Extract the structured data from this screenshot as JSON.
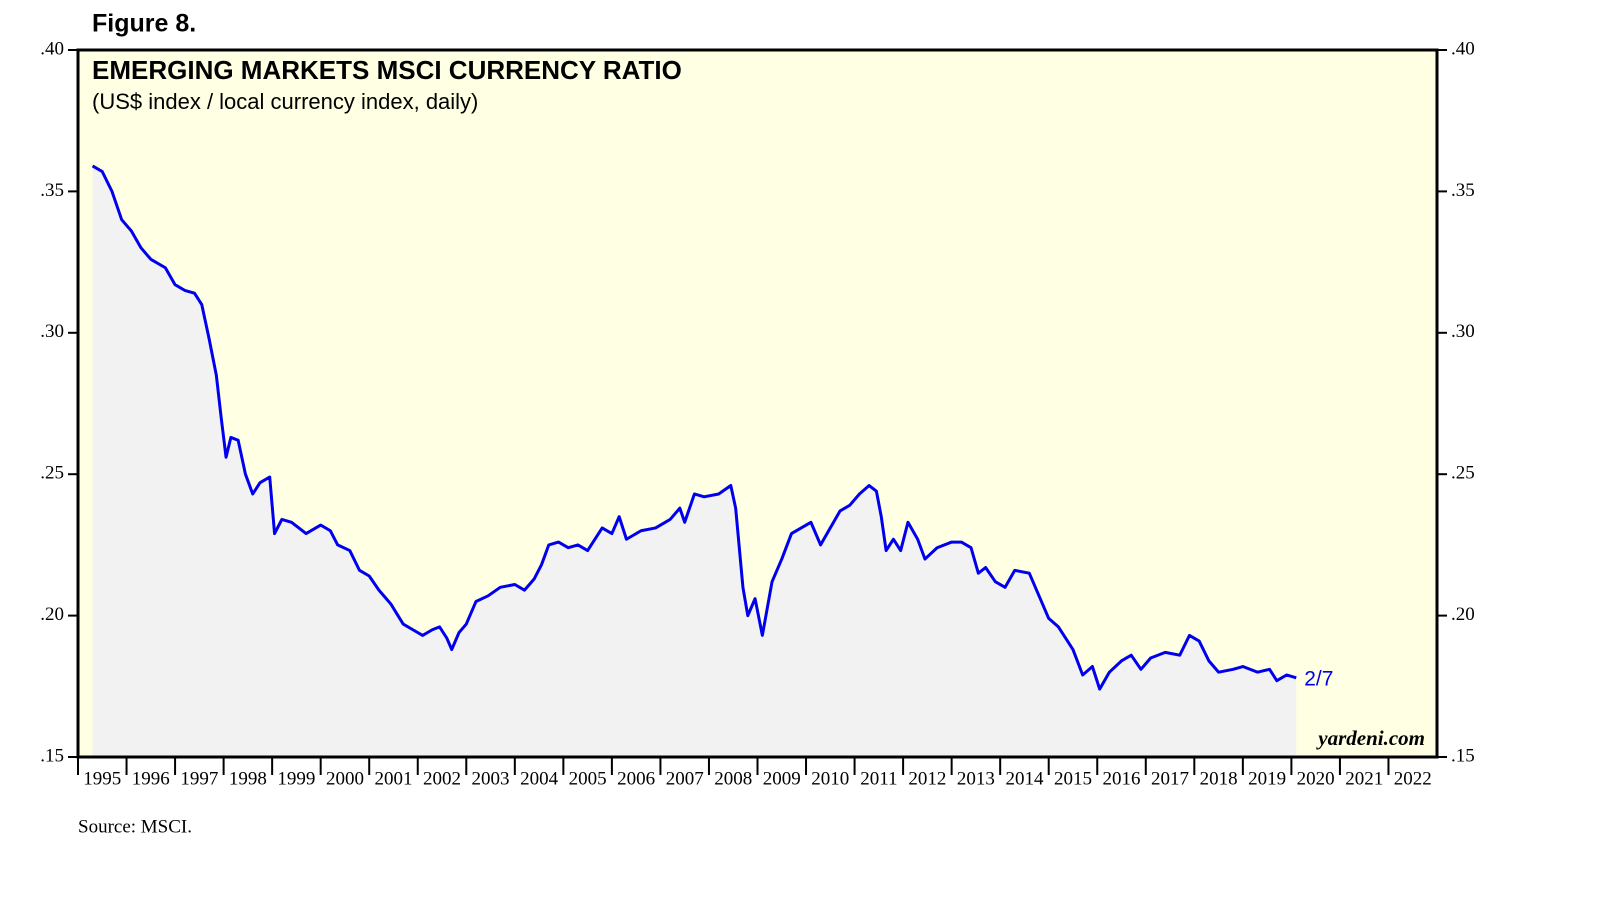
{
  "figure_label": "Figure 8.",
  "source": "Source: MSCI.",
  "chart_data": {
    "type": "line",
    "title": "EMERGING MARKETS MSCI CURRENCY RATIO",
    "subtitle": "(US$ index / local currency index, daily)",
    "watermark": "yardeni.com",
    "annotation": "2/7",
    "xlim": [
      1995,
      2023
    ],
    "xticks": [
      1995,
      1996,
      1997,
      1998,
      1999,
      2000,
      2001,
      2002,
      2003,
      2004,
      2005,
      2006,
      2007,
      2008,
      2009,
      2010,
      2011,
      2012,
      2013,
      2014,
      2015,
      2016,
      2017,
      2018,
      2019,
      2020,
      2021,
      2022
    ],
    "ylim": [
      0.15,
      0.4
    ],
    "yticks": [
      {
        "value": 0.15,
        "label": ".15"
      },
      {
        "value": 0.2,
        "label": ".20"
      },
      {
        "value": 0.25,
        "label": ".25"
      },
      {
        "value": 0.3,
        "label": ".30"
      },
      {
        "value": 0.35,
        "label": ".35"
      },
      {
        "value": 0.4,
        "label": ".40"
      }
    ],
    "series": [
      {
        "color": "#0000ee",
        "x": [
          1995.3,
          1995.5,
          1995.7,
          1995.9,
          1996.1,
          1996.3,
          1996.5,
          1996.8,
          1997.0,
          1997.2,
          1997.4,
          1997.55,
          1997.7,
          1997.85,
          1997.95,
          1998.05,
          1998.15,
          1998.3,
          1998.45,
          1998.6,
          1998.75,
          1998.95,
          1999.05,
          1999.2,
          1999.4,
          1999.7,
          2000.0,
          2000.2,
          2000.35,
          2000.6,
          2000.8,
          2001.0,
          2001.2,
          2001.45,
          2001.7,
          2001.9,
          2002.1,
          2002.3,
          2002.45,
          2002.6,
          2002.7,
          2002.85,
          2003.0,
          2003.2,
          2003.45,
          2003.7,
          2004.0,
          2004.2,
          2004.4,
          2004.55,
          2004.7,
          2004.9,
          2005.1,
          2005.3,
          2005.5,
          2005.8,
          2006.0,
          2006.15,
          2006.3,
          2006.6,
          2006.9,
          2007.2,
          2007.4,
          2007.5,
          2007.7,
          2007.9,
          2008.2,
          2008.45,
          2008.55,
          2008.7,
          2008.8,
          2008.95,
          2009.1,
          2009.3,
          2009.5,
          2009.7,
          2009.9,
          2010.1,
          2010.3,
          2010.5,
          2010.7,
          2010.9,
          2011.1,
          2011.3,
          2011.45,
          2011.55,
          2011.65,
          2011.8,
          2011.95,
          2012.1,
          2012.3,
          2012.45,
          2012.7,
          2013.0,
          2013.2,
          2013.4,
          2013.55,
          2013.7,
          2013.9,
          2014.1,
          2014.3,
          2014.6,
          2014.8,
          2015.0,
          2015.2,
          2015.5,
          2015.7,
          2015.9,
          2016.05,
          2016.25,
          2016.5,
          2016.7,
          2016.9,
          2017.1,
          2017.4,
          2017.7,
          2017.9,
          2018.1,
          2018.3,
          2018.5,
          2018.8,
          2019.0,
          2019.3,
          2019.55,
          2019.7,
          2019.9,
          2020.1
        ],
        "values": [
          0.359,
          0.357,
          0.35,
          0.34,
          0.336,
          0.33,
          0.326,
          0.323,
          0.317,
          0.315,
          0.314,
          0.31,
          0.298,
          0.285,
          0.27,
          0.256,
          0.263,
          0.262,
          0.25,
          0.243,
          0.247,
          0.249,
          0.229,
          0.234,
          0.233,
          0.229,
          0.232,
          0.23,
          0.225,
          0.223,
          0.216,
          0.214,
          0.209,
          0.204,
          0.197,
          0.195,
          0.193,
          0.195,
          0.196,
          0.192,
          0.188,
          0.194,
          0.197,
          0.205,
          0.207,
          0.21,
          0.211,
          0.209,
          0.213,
          0.218,
          0.225,
          0.226,
          0.224,
          0.225,
          0.223,
          0.231,
          0.229,
          0.235,
          0.227,
          0.23,
          0.231,
          0.234,
          0.238,
          0.233,
          0.243,
          0.242,
          0.243,
          0.246,
          0.238,
          0.21,
          0.2,
          0.206,
          0.193,
          0.212,
          0.22,
          0.229,
          0.231,
          0.233,
          0.225,
          0.231,
          0.237,
          0.239,
          0.243,
          0.246,
          0.244,
          0.235,
          0.223,
          0.227,
          0.223,
          0.233,
          0.227,
          0.22,
          0.224,
          0.226,
          0.226,
          0.224,
          0.215,
          0.217,
          0.212,
          0.21,
          0.216,
          0.215,
          0.207,
          0.199,
          0.196,
          0.188,
          0.179,
          0.182,
          0.174,
          0.18,
          0.184,
          0.186,
          0.181,
          0.185,
          0.187,
          0.186,
          0.193,
          0.191,
          0.184,
          0.18,
          0.181,
          0.182,
          0.18,
          0.181,
          0.177,
          0.179,
          0.178
        ]
      }
    ]
  }
}
